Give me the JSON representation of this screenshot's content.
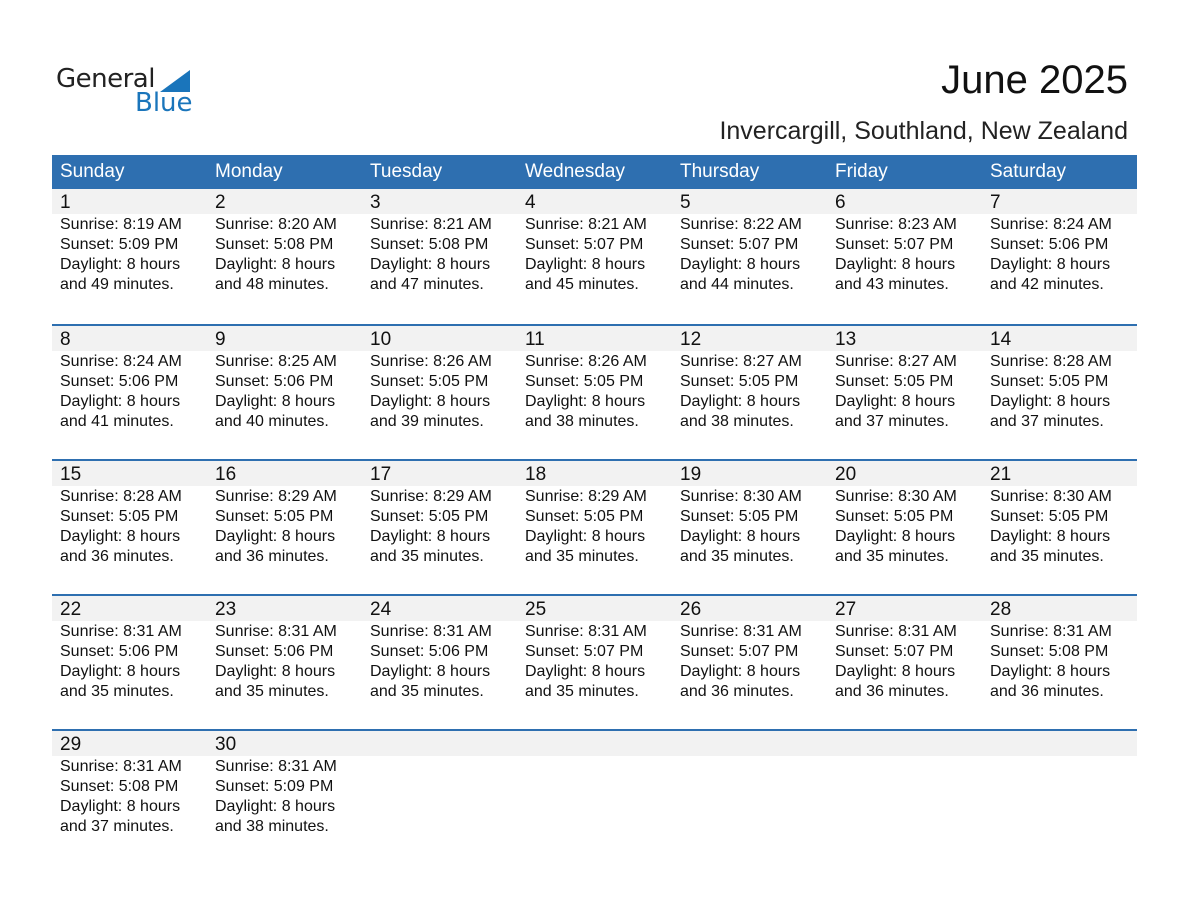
{
  "logo": {
    "text1": "General",
    "text2": "Blue"
  },
  "title": "June 2025",
  "subtitle": "Invercargill, Southland, New Zealand",
  "colors": {
    "header": "#2e6fb0",
    "logo_blue": "#1a75bb",
    "date_strip": "#f2f2f2"
  },
  "weekdays": [
    "Sunday",
    "Monday",
    "Tuesday",
    "Wednesday",
    "Thursday",
    "Friday",
    "Saturday"
  ],
  "days": [
    {
      "day": "1",
      "sunrise": "Sunrise: 8:19 AM",
      "sunset": "Sunset: 5:09 PM",
      "daylight": "Daylight: 8 hours",
      "minutes": "and 49 minutes."
    },
    {
      "day": "2",
      "sunrise": "Sunrise: 8:20 AM",
      "sunset": "Sunset: 5:08 PM",
      "daylight": "Daylight: 8 hours",
      "minutes": "and 48 minutes."
    },
    {
      "day": "3",
      "sunrise": "Sunrise: 8:21 AM",
      "sunset": "Sunset: 5:08 PM",
      "daylight": "Daylight: 8 hours",
      "minutes": "and 47 minutes."
    },
    {
      "day": "4",
      "sunrise": "Sunrise: 8:21 AM",
      "sunset": "Sunset: 5:07 PM",
      "daylight": "Daylight: 8 hours",
      "minutes": "and 45 minutes."
    },
    {
      "day": "5",
      "sunrise": "Sunrise: 8:22 AM",
      "sunset": "Sunset: 5:07 PM",
      "daylight": "Daylight: 8 hours",
      "minutes": "and 44 minutes."
    },
    {
      "day": "6",
      "sunrise": "Sunrise: 8:23 AM",
      "sunset": "Sunset: 5:07 PM",
      "daylight": "Daylight: 8 hours",
      "minutes": "and 43 minutes."
    },
    {
      "day": "7",
      "sunrise": "Sunrise: 8:24 AM",
      "sunset": "Sunset: 5:06 PM",
      "daylight": "Daylight: 8 hours",
      "minutes": "and 42 minutes."
    },
    {
      "day": "8",
      "sunrise": "Sunrise: 8:24 AM",
      "sunset": "Sunset: 5:06 PM",
      "daylight": "Daylight: 8 hours",
      "minutes": "and 41 minutes."
    },
    {
      "day": "9",
      "sunrise": "Sunrise: 8:25 AM",
      "sunset": "Sunset: 5:06 PM",
      "daylight": "Daylight: 8 hours",
      "minutes": "and 40 minutes."
    },
    {
      "day": "10",
      "sunrise": "Sunrise: 8:26 AM",
      "sunset": "Sunset: 5:05 PM",
      "daylight": "Daylight: 8 hours",
      "minutes": "and 39 minutes."
    },
    {
      "day": "11",
      "sunrise": "Sunrise: 8:26 AM",
      "sunset": "Sunset: 5:05 PM",
      "daylight": "Daylight: 8 hours",
      "minutes": "and 38 minutes."
    },
    {
      "day": "12",
      "sunrise": "Sunrise: 8:27 AM",
      "sunset": "Sunset: 5:05 PM",
      "daylight": "Daylight: 8 hours",
      "minutes": "and 38 minutes."
    },
    {
      "day": "13",
      "sunrise": "Sunrise: 8:27 AM",
      "sunset": "Sunset: 5:05 PM",
      "daylight": "Daylight: 8 hours",
      "minutes": "and 37 minutes."
    },
    {
      "day": "14",
      "sunrise": "Sunrise: 8:28 AM",
      "sunset": "Sunset: 5:05 PM",
      "daylight": "Daylight: 8 hours",
      "minutes": "and 37 minutes."
    },
    {
      "day": "15",
      "sunrise": "Sunrise: 8:28 AM",
      "sunset": "Sunset: 5:05 PM",
      "daylight": "Daylight: 8 hours",
      "minutes": "and 36 minutes."
    },
    {
      "day": "16",
      "sunrise": "Sunrise: 8:29 AM",
      "sunset": "Sunset: 5:05 PM",
      "daylight": "Daylight: 8 hours",
      "minutes": "and 36 minutes."
    },
    {
      "day": "17",
      "sunrise": "Sunrise: 8:29 AM",
      "sunset": "Sunset: 5:05 PM",
      "daylight": "Daylight: 8 hours",
      "minutes": "and 35 minutes."
    },
    {
      "day": "18",
      "sunrise": "Sunrise: 8:29 AM",
      "sunset": "Sunset: 5:05 PM",
      "daylight": "Daylight: 8 hours",
      "minutes": "and 35 minutes."
    },
    {
      "day": "19",
      "sunrise": "Sunrise: 8:30 AM",
      "sunset": "Sunset: 5:05 PM",
      "daylight": "Daylight: 8 hours",
      "minutes": "and 35 minutes."
    },
    {
      "day": "20",
      "sunrise": "Sunrise: 8:30 AM",
      "sunset": "Sunset: 5:05 PM",
      "daylight": "Daylight: 8 hours",
      "minutes": "and 35 minutes."
    },
    {
      "day": "21",
      "sunrise": "Sunrise: 8:30 AM",
      "sunset": "Sunset: 5:05 PM",
      "daylight": "Daylight: 8 hours",
      "minutes": "and 35 minutes."
    },
    {
      "day": "22",
      "sunrise": "Sunrise: 8:31 AM",
      "sunset": "Sunset: 5:06 PM",
      "daylight": "Daylight: 8 hours",
      "minutes": "and 35 minutes."
    },
    {
      "day": "23",
      "sunrise": "Sunrise: 8:31 AM",
      "sunset": "Sunset: 5:06 PM",
      "daylight": "Daylight: 8 hours",
      "minutes": "and 35 minutes."
    },
    {
      "day": "24",
      "sunrise": "Sunrise: 8:31 AM",
      "sunset": "Sunset: 5:06 PM",
      "daylight": "Daylight: 8 hours",
      "minutes": "and 35 minutes."
    },
    {
      "day": "25",
      "sunrise": "Sunrise: 8:31 AM",
      "sunset": "Sunset: 5:07 PM",
      "daylight": "Daylight: 8 hours",
      "minutes": "and 35 minutes."
    },
    {
      "day": "26",
      "sunrise": "Sunrise: 8:31 AM",
      "sunset": "Sunset: 5:07 PM",
      "daylight": "Daylight: 8 hours",
      "minutes": "and 36 minutes."
    },
    {
      "day": "27",
      "sunrise": "Sunrise: 8:31 AM",
      "sunset": "Sunset: 5:07 PM",
      "daylight": "Daylight: 8 hours",
      "minutes": "and 36 minutes."
    },
    {
      "day": "28",
      "sunrise": "Sunrise: 8:31 AM",
      "sunset": "Sunset: 5:08 PM",
      "daylight": "Daylight: 8 hours",
      "minutes": "and 36 minutes."
    },
    {
      "day": "29",
      "sunrise": "Sunrise: 8:31 AM",
      "sunset": "Sunset: 5:08 PM",
      "daylight": "Daylight: 8 hours",
      "minutes": "and 37 minutes."
    },
    {
      "day": "30",
      "sunrise": "Sunrise: 8:31 AM",
      "sunset": "Sunset: 5:09 PM",
      "daylight": "Daylight: 8 hours",
      "minutes": "and 38 minutes."
    }
  ]
}
